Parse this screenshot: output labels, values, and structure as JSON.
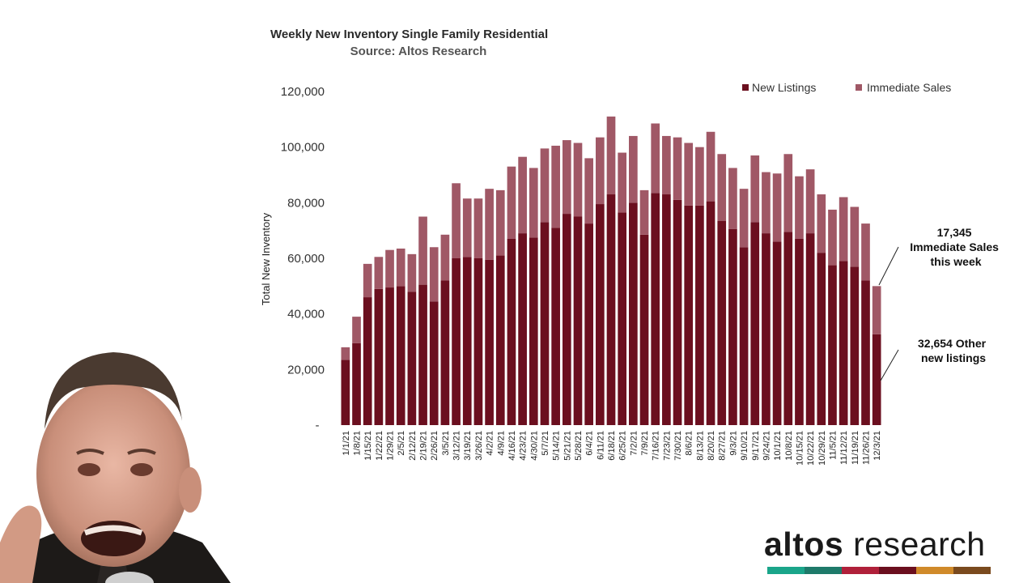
{
  "chart_data": {
    "type": "bar",
    "stacked": true,
    "title": "Weekly New Inventory Single Family Residential",
    "subtitle": "Source: Altos Research",
    "ylabel": "Total New Inventory",
    "xlabel": "",
    "ylim": [
      0,
      120000
    ],
    "yticks": [
      {
        "value": 0,
        "label": "-"
      },
      {
        "value": 20000,
        "label": "20,000"
      },
      {
        "value": 40000,
        "label": "40,000"
      },
      {
        "value": 60000,
        "label": "60,000"
      },
      {
        "value": 80000,
        "label": "80,000"
      },
      {
        "value": 100000,
        "label": "100,000"
      },
      {
        "value": 120000,
        "label": "120,000"
      }
    ],
    "grid": false,
    "legend_position": "top-right",
    "categories": [
      "1/1/21",
      "1/8/21",
      "1/15/21",
      "1/22/21",
      "1/29/21",
      "2/5/21",
      "2/12/21",
      "2/19/21",
      "2/26/21",
      "3/5/21",
      "3/12/21",
      "3/19/21",
      "3/26/21",
      "4/2/21",
      "4/9/21",
      "4/16/21",
      "4/23/21",
      "4/30/21",
      "5/7/21",
      "5/14/21",
      "5/21/21",
      "5/28/21",
      "6/4/21",
      "6/11/21",
      "6/18/21",
      "6/25/21",
      "7/2/21",
      "7/9/21",
      "7/16/21",
      "7/23/21",
      "7/30/21",
      "8/6/21",
      "8/13/21",
      "8/20/21",
      "8/27/21",
      "9/3/21",
      "9/10/21",
      "9/17/21",
      "9/24/21",
      "10/1/21",
      "10/8/21",
      "10/15/21",
      "10/22/21",
      "10/29/21",
      "11/5/21",
      "11/12/21",
      "11/19/21",
      "11/26/21",
      "12/3/21"
    ],
    "series": [
      {
        "name": "New Listings",
        "color": "#6b0f1f",
        "values": [
          23500,
          29500,
          46000,
          49000,
          49500,
          50000,
          48000,
          50500,
          44500,
          52000,
          60000,
          60500,
          60000,
          59500,
          61000,
          67000,
          69000,
          67500,
          73000,
          71000,
          76000,
          75000,
          72500,
          79500,
          83000,
          76500,
          80000,
          68500,
          83500,
          83000,
          81000,
          79000,
          79000,
          80500,
          73500,
          70500,
          64000,
          73000,
          69000,
          66000,
          69500,
          67000,
          69000,
          62000,
          57500,
          59000,
          57000,
          52000,
          32654
        ]
      },
      {
        "name": "Immediate Sales",
        "color": "#a05866",
        "values": [
          4500,
          9500,
          12000,
          11500,
          13500,
          13500,
          13500,
          24500,
          19500,
          16500,
          27000,
          21000,
          21500,
          25500,
          23500,
          26000,
          27500,
          25000,
          26500,
          29500,
          26500,
          26500,
          23500,
          24000,
          28000,
          21500,
          24000,
          16000,
          25000,
          21000,
          22500,
          22500,
          21000,
          25000,
          24000,
          22000,
          21000,
          24000,
          22000,
          24500,
          28000,
          22500,
          23000,
          21000,
          20000,
          23000,
          21500,
          20500,
          17345
        ]
      }
    ],
    "annotations": [
      {
        "lines": [
          "17,345",
          "Immediate Sales",
          "this week"
        ]
      },
      {
        "lines": [
          "32,654  Other",
          "new listings"
        ]
      }
    ]
  },
  "logo": {
    "text_part1": "altos",
    "text_part2": " research",
    "stripe_colors": [
      "#1aa58a",
      "#1e7a6a",
      "#b0203a",
      "#6b0f1f",
      "#d08a2a",
      "#7a4a1e"
    ]
  },
  "presenter": {
    "description_icon": "presenter-video-icon"
  }
}
